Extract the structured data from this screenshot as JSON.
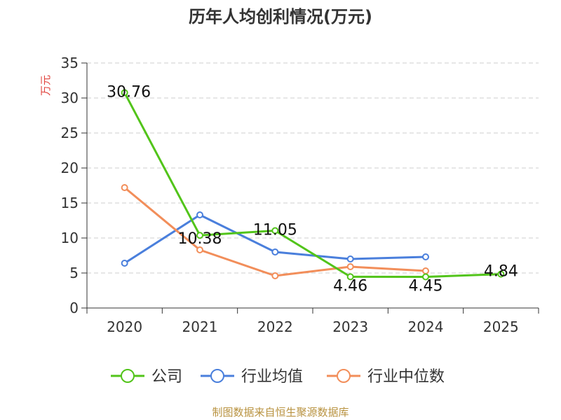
{
  "chart_data": {
    "type": "line",
    "title": "历年人均创利情况(万元)",
    "ylabel": "万元",
    "xlabel": "",
    "categories": [
      "2020",
      "2021",
      "2022",
      "2023",
      "2024",
      "2025"
    ],
    "ylim": [
      0,
      35
    ],
    "yticks": [
      0,
      5,
      10,
      15,
      20,
      25,
      30,
      35
    ],
    "grid": true,
    "legend_position": "bottom",
    "series": [
      {
        "name": "公司",
        "color": "#52c41a",
        "values": [
          30.76,
          10.38,
          11.05,
          4.46,
          4.45,
          4.84
        ],
        "data_labels": [
          "30.76",
          "10.38",
          "11.05",
          "4.46",
          "4.45",
          "4.84"
        ]
      },
      {
        "name": "行业均值",
        "color": "#4a7fdc",
        "values": [
          6.4,
          13.3,
          8.0,
          7.0,
          7.3,
          null
        ]
      },
      {
        "name": "行业中位数",
        "color": "#f28e5a",
        "values": [
          17.2,
          8.3,
          4.6,
          5.9,
          5.3,
          null
        ]
      }
    ]
  },
  "footer": {
    "source": "制图数据来自恒生聚源数据库"
  }
}
